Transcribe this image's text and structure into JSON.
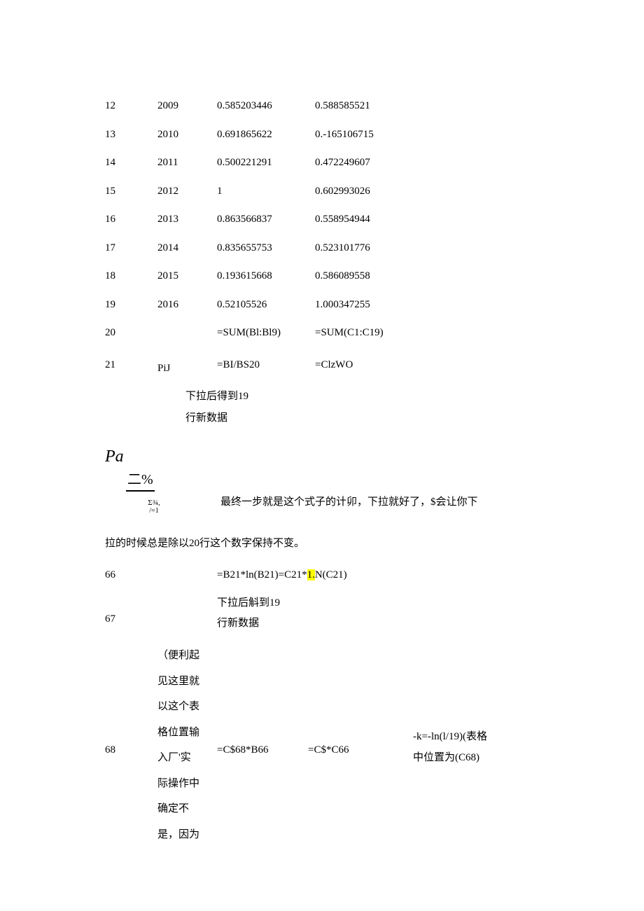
{
  "rows_top": [
    {
      "a": "12",
      "b": "2009",
      "c": "0.585203446",
      "d": "0.588585521"
    },
    {
      "a": "13",
      "b": "2010",
      "c": "0.691865622",
      "d": "0.-165106715"
    },
    {
      "a": "14",
      "b": "2011",
      "c": "0.500221291",
      "d": "0.472249607"
    },
    {
      "a": "15",
      "b": "2012",
      "c": "1",
      "d": "0.602993026"
    },
    {
      "a": "16",
      "b": "2013",
      "c": "0.863566837",
      "d": "0.558954944"
    },
    {
      "a": "17",
      "b": "2014",
      "c": "0.835655753",
      "d": "0.523101776"
    },
    {
      "a": "18",
      "b": "2015",
      "c": "0.193615668",
      "d": "0.586089558"
    },
    {
      "a": "19",
      "b": "2016",
      "c": "0.52105526",
      "d": "1.000347255"
    }
  ],
  "row20": {
    "a": "20",
    "b": "",
    "c": "=SUM(Bl:Bl9)",
    "d": "=SUM(C1:C19)"
  },
  "row21": {
    "a": "21",
    "b": "PiJ",
    "c": "=BI/BS20",
    "d": "=ClzWO"
  },
  "note21": {
    "line1": "下拉后得到19",
    "line2": "行新数据"
  },
  "formula": {
    "pa": "Pa",
    "line2": "二%",
    "sigma": "Σ¾,",
    "sigma_sub": "/=1",
    "text": "最终一步就是这个式子的计卯，下拉就好了，$会让你下"
  },
  "para1": "拉的时候总是除以20行这个数字保持不变。",
  "row66": {
    "a": "66",
    "c_pre": "=B21*ln(B21)=C21*",
    "c_hl": "1.",
    "c_post": "N(C21)"
  },
  "row67": {
    "a": "67",
    "line1": "下拉后斛到19",
    "line2": "行新数据"
  },
  "row68": {
    "a": "68",
    "b_lines": [
      "（便利起",
      "见这里就",
      "以这个表",
      "格位置输",
      "入厂'实",
      "际操作中",
      "确定不",
      "是，因为"
    ],
    "c": "=C$68*B66",
    "d": "=C$*C66",
    "e_lines": [
      "-k=-ln(l/19)(表格",
      "中位置为(C68)"
    ]
  }
}
